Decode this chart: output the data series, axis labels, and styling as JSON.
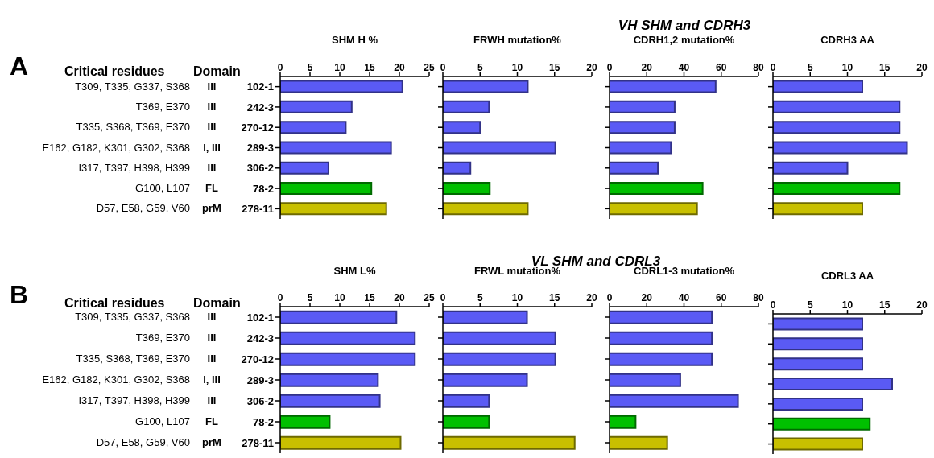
{
  "chart_data": [
    {
      "type": "other",
      "title": "VH SHM and CDRH3",
      "annotations": [
        "A",
        "Critical residues",
        "Domain",
        "T309, T335, G337, S368",
        "T369, E370",
        "T335, S368, T369, E370",
        "E162, G182, K301, G302, S368",
        "I317, T397, H398, H399",
        "G100, L107",
        "D57, E58, G59, V60",
        "III",
        "III",
        "III",
        "I, III",
        "III",
        "FL",
        "prM"
      ]
    },
    {
      "type": "bar",
      "orientation": "horizontal",
      "title": "SHM H %",
      "categories": [
        "102-1",
        "242-3",
        "270-12",
        "289-3",
        "306-2",
        "78-2",
        "278-11"
      ],
      "values": [
        20.5,
        12.0,
        11.0,
        18.6,
        8.1,
        15.3,
        17.8
      ],
      "colors": [
        "#5a5af5",
        "#5a5af5",
        "#5a5af5",
        "#5a5af5",
        "#5a5af5",
        "#00c000",
        "#c8c000"
      ],
      "xlim": [
        0,
        25
      ],
      "xticks": [
        0,
        5,
        10,
        15,
        20,
        25
      ]
    },
    {
      "type": "bar",
      "orientation": "horizontal",
      "title": "FRWH mutation%",
      "categories": [
        null,
        null,
        null,
        null,
        null,
        null,
        null
      ],
      "values": [
        11.4,
        6.2,
        5.0,
        15.1,
        3.7,
        6.3,
        11.4
      ],
      "colors": [
        "#5a5af5",
        "#5a5af5",
        "#5a5af5",
        "#5a5af5",
        "#5a5af5",
        "#00c000",
        "#c8c000"
      ],
      "xlim": [
        0,
        20
      ],
      "xticks": [
        0,
        5,
        10,
        15,
        20
      ],
      "tick_labels": "x"
    },
    {
      "type": "bar",
      "orientation": "horizontal",
      "title": "CDRH1,2 mutation%",
      "categories": [
        null,
        null,
        null,
        null,
        null,
        null,
        null
      ],
      "values": [
        57,
        35,
        35,
        33,
        26,
        50,
        47
      ],
      "colors": [
        "#5a5af5",
        "#5a5af5",
        "#5a5af5",
        "#5a5af5",
        "#5a5af5",
        "#00c000",
        "#c8c000"
      ],
      "xlim": [
        0,
        80
      ],
      "xticks": [
        0,
        20,
        40,
        60,
        80
      ],
      "tick_labels": "x"
    },
    {
      "type": "bar",
      "orientation": "horizontal",
      "title": "CDRH3 AA",
      "categories": [
        null,
        null,
        null,
        null,
        null,
        null,
        null
      ],
      "values": [
        12,
        17,
        17,
        18,
        10,
        17,
        12
      ],
      "colors": [
        "#5a5af5",
        "#5a5af5",
        "#5a5af5",
        "#5a5af5",
        "#5a5af5",
        "#00c000",
        "#c8c000"
      ],
      "xlim": [
        0,
        20
      ],
      "xticks": [
        0,
        5,
        10,
        15,
        20
      ],
      "tick_labels": "x"
    },
    {
      "type": "other",
      "title": "VL SHM and CDRL3",
      "annotations": [
        "B",
        "Critical residues",
        "Domain",
        "T309, T335, G337, S368",
        "T369, E370",
        "T335, S368, T369, E370",
        "E162, G182, K301, G302, S368",
        "I317, T397, H398, H399",
        "G100, L107",
        "D57, E58, G59, V60",
        "III",
        "III",
        "III",
        "I, III",
        "III",
        "FL",
        "prM"
      ]
    },
    {
      "type": "bar",
      "orientation": "horizontal",
      "title": "SHM L%",
      "categories": [
        "102-1",
        "242-3",
        "270-12",
        "289-3",
        "306-2",
        "78-2",
        "278-11"
      ],
      "values": [
        19.5,
        22.6,
        22.6,
        16.4,
        16.7,
        8.3,
        20.2
      ],
      "colors": [
        "#5a5af5",
        "#5a5af5",
        "#5a5af5",
        "#5a5af5",
        "#5a5af5",
        "#00c000",
        "#c8c000"
      ],
      "xlim": [
        0,
        25
      ],
      "xticks": [
        0,
        5,
        10,
        15,
        20,
        25
      ]
    },
    {
      "type": "bar",
      "orientation": "horizontal",
      "title": "FRWL mutation%",
      "categories": [
        null,
        null,
        null,
        null,
        null,
        null,
        null
      ],
      "values": [
        11.3,
        15.1,
        15.1,
        11.3,
        6.2,
        6.2,
        17.7
      ],
      "colors": [
        "#5a5af5",
        "#5a5af5",
        "#5a5af5",
        "#5a5af5",
        "#5a5af5",
        "#00c000",
        "#c8c000"
      ],
      "xlim": [
        0,
        20
      ],
      "xticks": [
        0,
        5,
        10,
        15,
        20
      ],
      "tick_labels": "x"
    },
    {
      "type": "bar",
      "orientation": "horizontal",
      "title": "CDRL1-3 mutation%",
      "categories": [
        null,
        null,
        null,
        null,
        null,
        null,
        null
      ],
      "values": [
        55,
        55,
        55,
        38,
        69,
        14,
        31
      ],
      "colors": [
        "#5a5af5",
        "#5a5af5",
        "#5a5af5",
        "#5a5af5",
        "#5a5af5",
        "#00c000",
        "#c8c000"
      ],
      "xlim": [
        0,
        80
      ],
      "xticks": [
        0,
        20,
        40,
        60,
        80
      ],
      "tick_labels": "x"
    },
    {
      "type": "bar",
      "orientation": "horizontal",
      "title": "CDRL3 AA",
      "categories": [
        null,
        null,
        null,
        null,
        null,
        null,
        null
      ],
      "values": [
        12,
        12,
        12,
        16,
        12,
        13,
        12
      ],
      "colors": [
        "#5a5af5",
        "#5a5af5",
        "#5a5af5",
        "#5a5af5",
        "#5a5af5",
        "#00c000",
        "#c8c000"
      ],
      "xlim": [
        0,
        20
      ],
      "xticks": [
        0,
        5,
        10,
        15,
        20
      ],
      "tick_labels": "x"
    }
  ]
}
